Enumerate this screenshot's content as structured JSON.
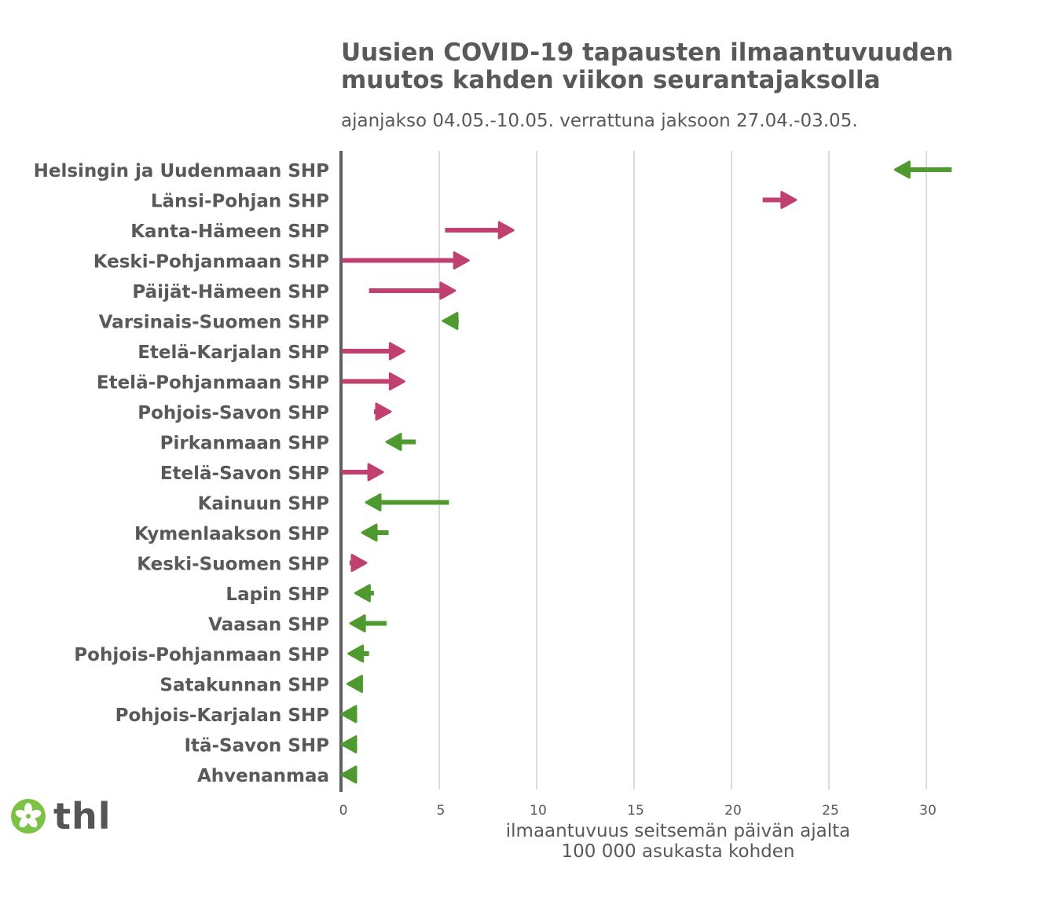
{
  "chart_data": {
    "type": "arrow",
    "title_line1": "Uusien COVID-19 tapausten ilmaantuvuuden",
    "title_line2": "muutos kahden viikon seurantajaksolla",
    "subtitle": "ajanjakso 04.05.-10.05. verrattuna jaksoon 27.04.-03.05.",
    "xlabel_line1": "ilmaantuvuus seitsemän päivän ajalta",
    "xlabel_line2": "100 000 asukasta kohden",
    "xlim": [
      0,
      31.5
    ],
    "xticks": [
      "0",
      "5",
      "10",
      "15",
      "20",
      "25",
      "30"
    ],
    "grid": true,
    "colors": {
      "increase": "#c0406f",
      "decrease": "#4e9a2e",
      "axis": "#606060",
      "grid": "#dcdcdc"
    },
    "regions": [
      {
        "name": "Helsingin ja Uudenmaan SHP",
        "from": 31.3,
        "to": 28.4
      },
      {
        "name": "Länsi-Pohjan SHP",
        "from": 21.6,
        "to": 23.3
      },
      {
        "name": "Kanta-Hämeen SHP",
        "from": 5.3,
        "to": 8.8
      },
      {
        "name": "Keski-Pohjanmaan SHP",
        "from": 0.0,
        "to": 6.5
      },
      {
        "name": "Päijät-Hämeen SHP",
        "from": 1.4,
        "to": 5.8
      },
      {
        "name": "Varsinais-Suomen SHP",
        "from": 6.0,
        "to": 5.2
      },
      {
        "name": "Etelä-Karjalan SHP",
        "from": 0.0,
        "to": 3.2
      },
      {
        "name": "Etelä-Pohjanmaan SHP",
        "from": 0.0,
        "to": 3.2
      },
      {
        "name": "Pohjois-Savon SHP",
        "from": 1.65,
        "to": 2.5
      },
      {
        "name": "Pirkanmaan SHP",
        "from": 3.8,
        "to": 2.3
      },
      {
        "name": "Etelä-Savon SHP",
        "from": 0.0,
        "to": 2.1
      },
      {
        "name": "Kainuun SHP",
        "from": 5.5,
        "to": 1.25
      },
      {
        "name": "Kymenlaakson SHP",
        "from": 2.4,
        "to": 1.05
      },
      {
        "name": "Keski-Suomen SHP",
        "from": 0.4,
        "to": 1.25
      },
      {
        "name": "Lapin SHP",
        "from": 1.65,
        "to": 0.7
      },
      {
        "name": "Vaasan SHP",
        "from": 2.3,
        "to": 0.45
      },
      {
        "name": "Pohjois-Pohjanmaan SHP",
        "from": 1.4,
        "to": 0.35
      },
      {
        "name": "Satakunnan SHP",
        "from": 1.05,
        "to": 0.3
      },
      {
        "name": "Pohjois-Karjalan SHP",
        "from": 0.6,
        "to": 0.0
      },
      {
        "name": "Itä-Savon SHP",
        "from": 0.6,
        "to": 0.0
      },
      {
        "name": "Ahvenanmaa",
        "from": 0.6,
        "to": 0.0
      }
    ]
  },
  "logo": {
    "text": "thl"
  }
}
